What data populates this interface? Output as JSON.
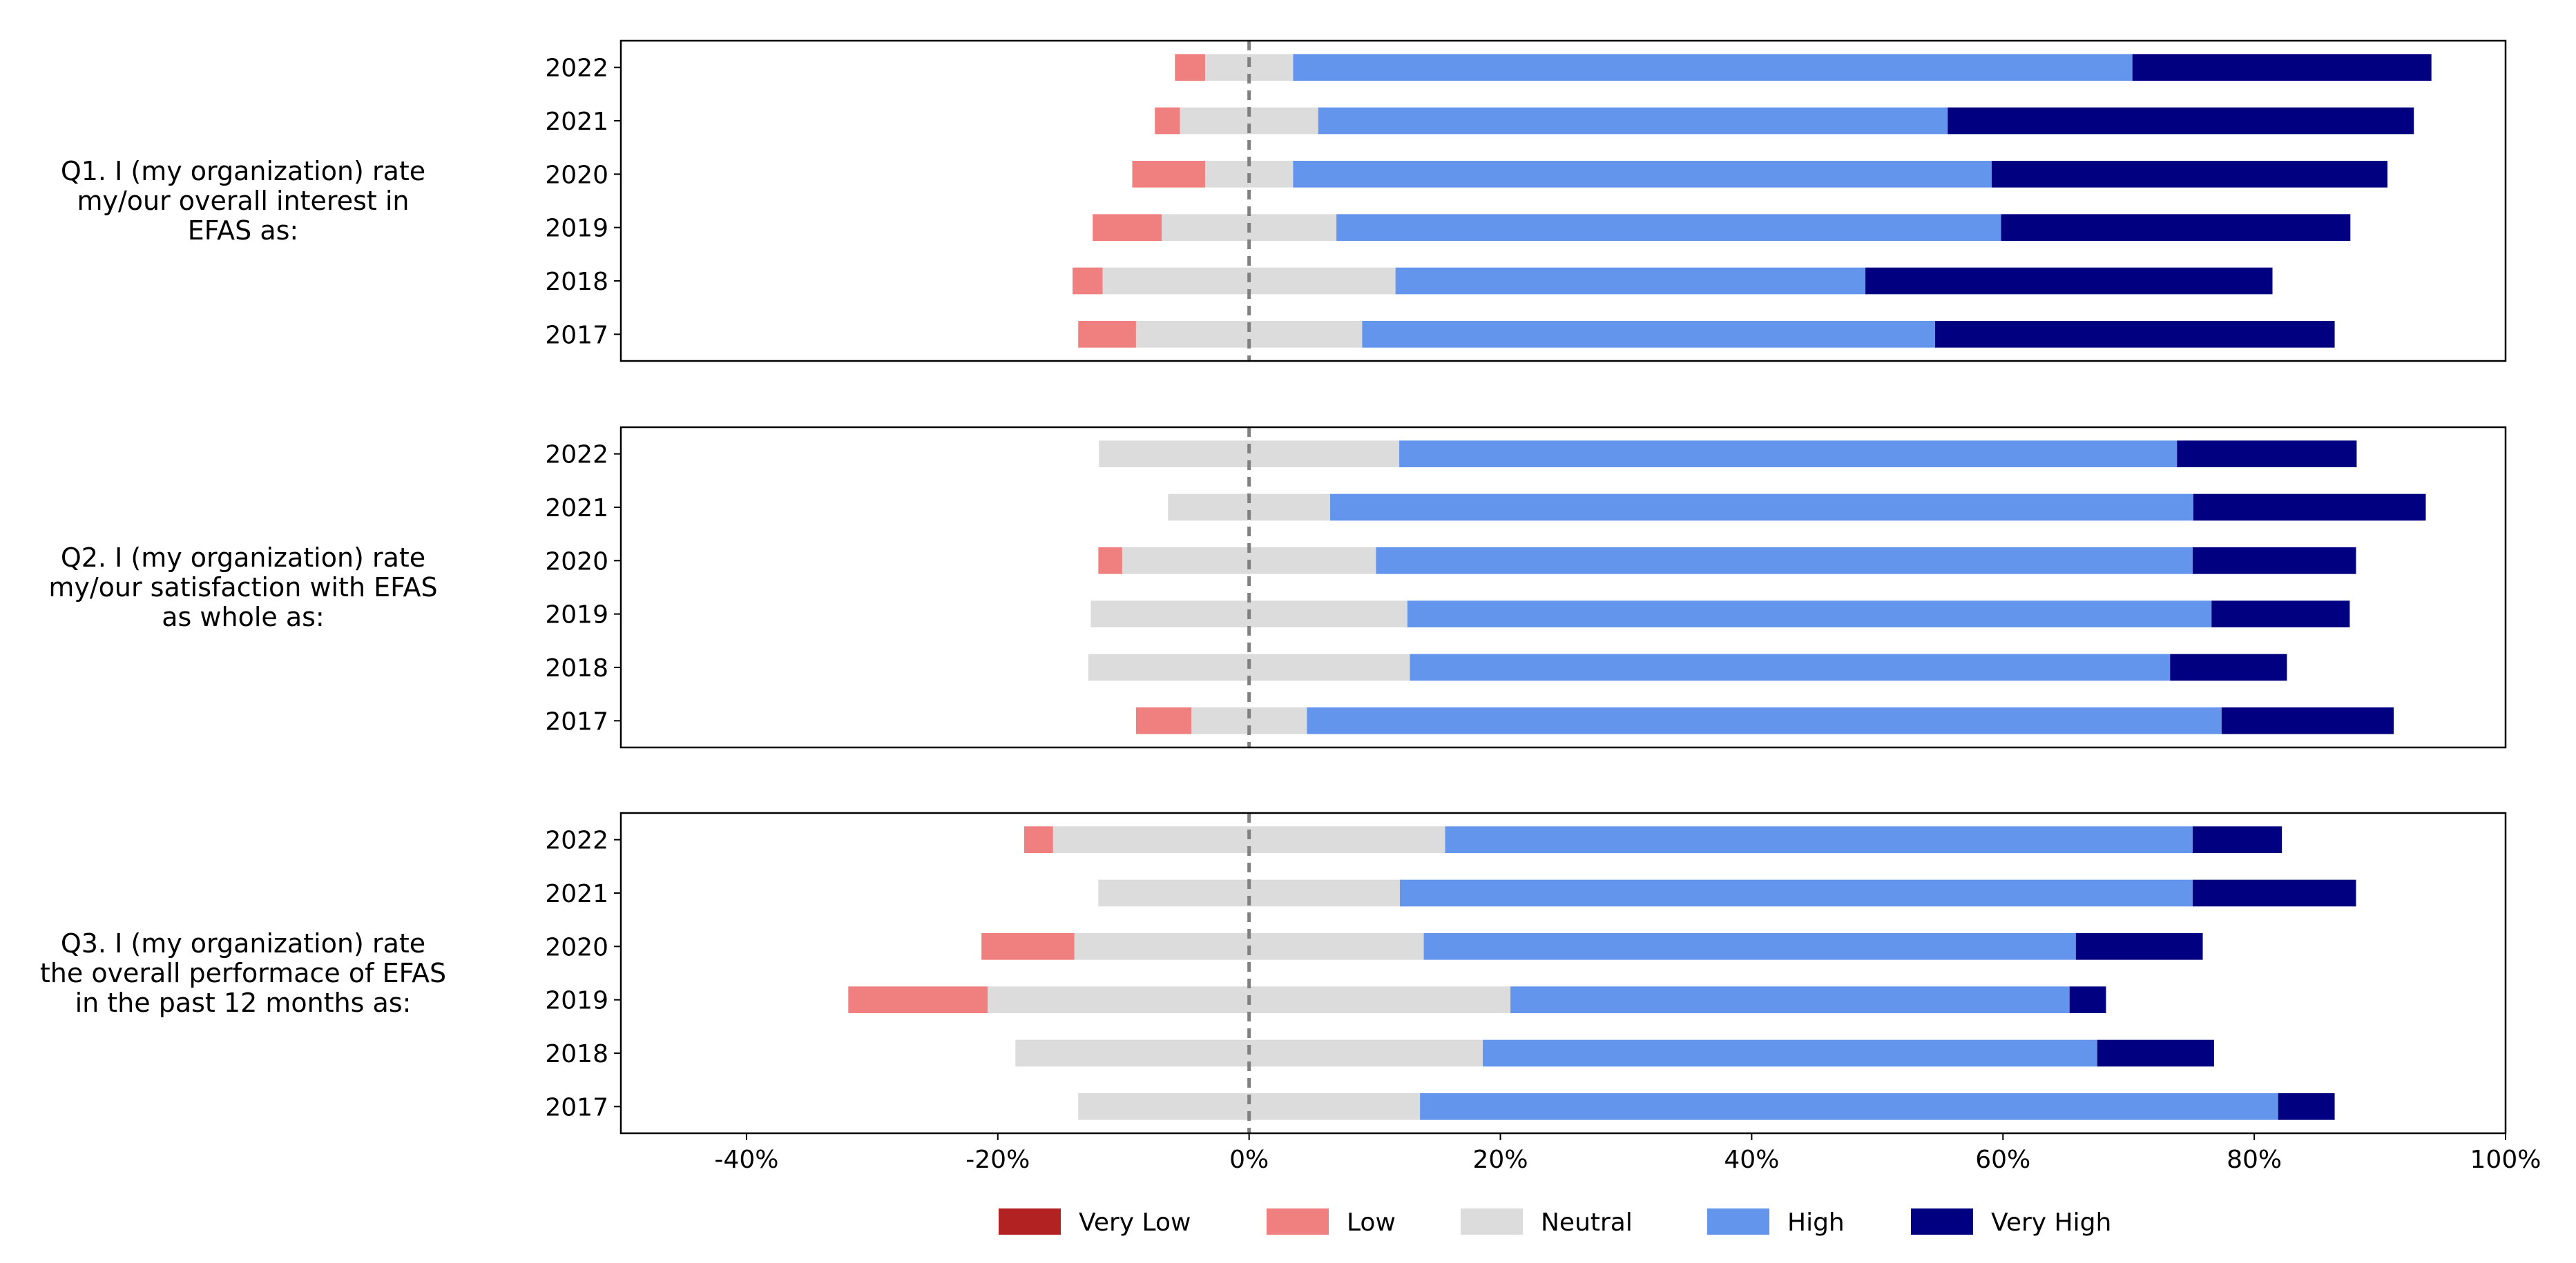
{
  "chart_data": {
    "type": "bar",
    "orientation": "horizontal-diverging-stacked",
    "xlim": [
      -50,
      100
    ],
    "xticks": [
      -40,
      -20,
      0,
      20,
      40,
      60,
      80,
      100
    ],
    "xtick_labels": [
      "-40%",
      "-20%",
      "0%",
      "20%",
      "40%",
      "60%",
      "80%",
      "100%"
    ],
    "legend_placement": "bottom-center",
    "legend": [
      "Very Low",
      "Low",
      "Neutral",
      "High",
      "Very High"
    ],
    "colors": {
      "Very Low": "#b22222",
      "Low": "#f08080",
      "Neutral": "#dcdcdc",
      "High": "#6495ed",
      "Very High": "#000080"
    },
    "panels": [
      {
        "title": "Q1. I (my organization) rate\nmy/our overall interest in\nEFAS as:",
        "categories": [
          "2022",
          "2021",
          "2020",
          "2019",
          "2018",
          "2017"
        ],
        "series": [
          {
            "name": "Very Low",
            "values": [
              0,
              0,
              0,
              0,
              0,
              0
            ]
          },
          {
            "name": "Low",
            "values": [
              2.4,
              2.0,
              5.8,
              5.5,
              2.4,
              4.6
            ]
          },
          {
            "name": "Neutral",
            "values": [
              7.0,
              11.0,
              7.0,
              13.9,
              23.3,
              18.0
            ]
          },
          {
            "name": "High",
            "values": [
              66.8,
              50.1,
              55.6,
              52.9,
              37.4,
              45.6
            ]
          },
          {
            "name": "Very High",
            "values": [
              23.8,
              37.1,
              31.5,
              27.8,
              32.4,
              31.8
            ]
          }
        ]
      },
      {
        "title": "Q2. I (my organization) rate\nmy/our satisfaction with EFAS\nas whole as:",
        "categories": [
          "2022",
          "2021",
          "2020",
          "2019",
          "2018",
          "2017"
        ],
        "series": [
          {
            "name": "Very Low",
            "values": [
              0,
              0,
              0,
              0,
              0,
              0
            ]
          },
          {
            "name": "Low",
            "values": [
              0,
              0,
              1.9,
              0,
              0,
              4.4
            ]
          },
          {
            "name": "Neutral",
            "values": [
              23.9,
              12.9,
              20.2,
              25.2,
              25.6,
              9.2
            ]
          },
          {
            "name": "High",
            "values": [
              61.9,
              68.7,
              65.0,
              64.0,
              60.5,
              72.8
            ]
          },
          {
            "name": "Very High",
            "values": [
              14.3,
              18.5,
              13.0,
              11.0,
              9.3,
              13.7
            ]
          }
        ]
      },
      {
        "title": "Q3. I (my organization) rate\nthe overall performace of EFAS\nin the past 12 months as:",
        "categories": [
          "2022",
          "2021",
          "2020",
          "2019",
          "2018",
          "2017"
        ],
        "series": [
          {
            "name": "Very Low",
            "values": [
              0,
              0,
              0,
              0,
              0,
              0
            ]
          },
          {
            "name": "Low",
            "values": [
              2.3,
              0,
              7.4,
              11.1,
              0,
              0
            ]
          },
          {
            "name": "Neutral",
            "values": [
              31.2,
              24.0,
              27.8,
              41.6,
              37.2,
              27.2
            ]
          },
          {
            "name": "High",
            "values": [
              59.5,
              63.1,
              51.9,
              44.5,
              48.9,
              68.3
            ]
          },
          {
            "name": "Very High",
            "values": [
              7.1,
              13.0,
              10.1,
              2.9,
              9.3,
              4.5
            ]
          }
        ]
      }
    ]
  }
}
